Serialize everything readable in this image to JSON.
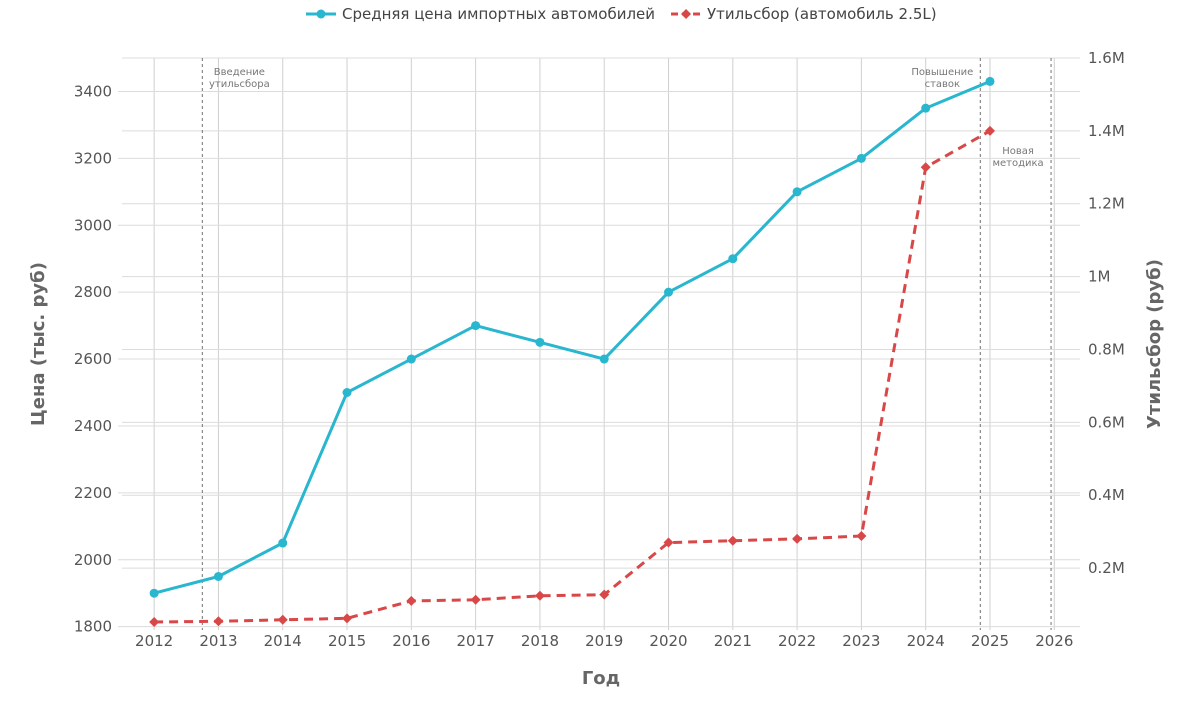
{
  "chart_data": {
    "type": "line",
    "title": "",
    "xlabel": "Год",
    "ylabel_left": "Цена (тыс. руб)",
    "ylabel_right": "Утильсбор (руб)",
    "x": [
      2012,
      2013,
      2014,
      2015,
      2016,
      2017,
      2018,
      2019,
      2020,
      2021,
      2022,
      2023,
      2024,
      2025
    ],
    "x_ticks": [
      "2012",
      "2013",
      "2014",
      "2015",
      "2016",
      "2017",
      "2018",
      "2019",
      "2020",
      "2021",
      "2022",
      "2023",
      "2024",
      "2025",
      "2026"
    ],
    "xlim": [
      2011.5,
      2026.4
    ],
    "ylim_left": [
      1790,
      3500
    ],
    "ylim_right": [
      30000,
      1600000
    ],
    "y_ticks_left": [
      "1800",
      "2000",
      "2200",
      "2400",
      "2600",
      "2800",
      "3000",
      "3200",
      "3400"
    ],
    "y_ticks_right": [
      {
        "value": 200000,
        "label": "0.2M"
      },
      {
        "value": 400000,
        "label": "0.4M"
      },
      {
        "value": 600000,
        "label": "0.6M"
      },
      {
        "value": 800000,
        "label": "0.8M"
      },
      {
        "value": 1000000,
        "label": "1M"
      },
      {
        "value": 1200000,
        "label": "1.2M"
      },
      {
        "value": 1400000,
        "label": "1.4M"
      },
      {
        "value": 1600000,
        "label": "1.6M"
      }
    ],
    "grid": true,
    "legend_position": "top-center",
    "series": [
      {
        "name": "Средняя цена импортных автомобилей",
        "axis": "left",
        "color": "#29b6cf",
        "marker": "circle",
        "dash": "solid",
        "values": [
          1900,
          1950,
          2050,
          2500,
          2600,
          2700,
          2650,
          2600,
          2800,
          2900,
          3100,
          3200,
          3350,
          3430
        ]
      },
      {
        "name": "Утильсбор (автомобиль 2.5L)",
        "axis": "right",
        "color": "#d94848",
        "marker": "diamond",
        "dash": "dashed",
        "values": [
          52000,
          54000,
          58000,
          62000,
          110000,
          113000,
          124000,
          127000,
          270000,
          275000,
          280000,
          288000,
          1300000,
          1400000
        ]
      }
    ],
    "annotations": [
      {
        "x": 2012.75,
        "lines": [
          "Введение",
          "утильсбора"
        ]
      },
      {
        "x": 2024.85,
        "lines": [
          "Повышение",
          "ставок"
        ]
      },
      {
        "x": 2025.95,
        "lines": [
          "Новая",
          "методика"
        ]
      }
    ]
  }
}
